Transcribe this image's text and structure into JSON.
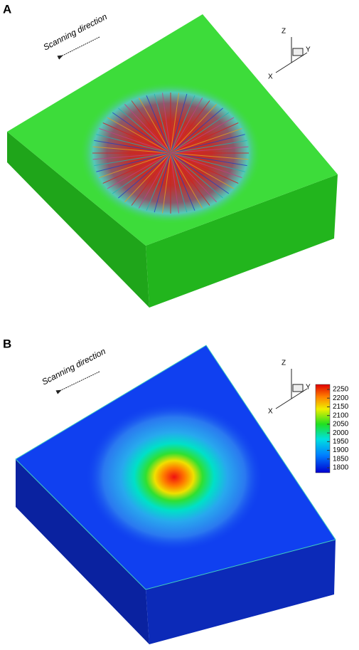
{
  "panels": [
    {
      "label": "A",
      "annotation": "Scanning direction",
      "axes": {
        "z": "Z",
        "y": "Y",
        "x": "X"
      }
    },
    {
      "label": "B",
      "annotation": "Scanning direction",
      "axes": {
        "z": "Z",
        "y": "Y",
        "x": "X"
      },
      "colorbar": {
        "ticks": [
          2250,
          2200,
          2150,
          2100,
          2050,
          2000,
          1950,
          1900,
          1850,
          1800
        ]
      }
    }
  ]
}
